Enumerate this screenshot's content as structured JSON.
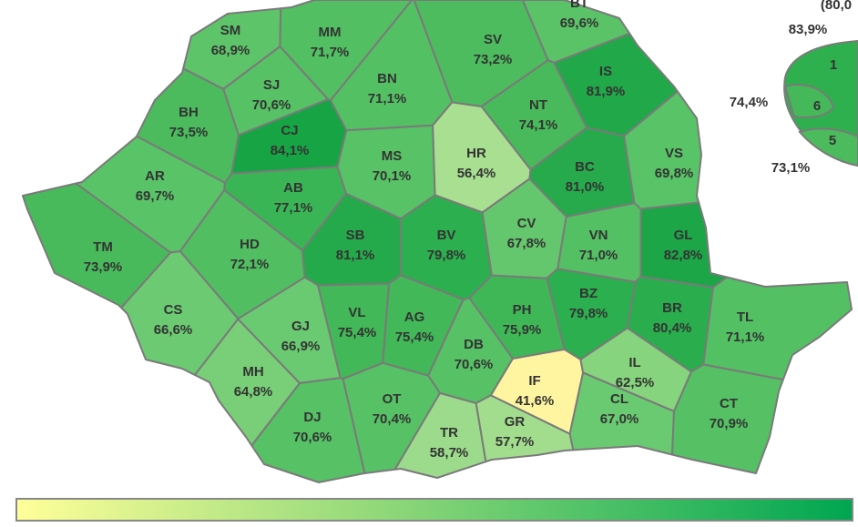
{
  "map": {
    "counties": [
      {
        "code": "SM",
        "value_label": "68,9%",
        "color": "#5ec469"
      },
      {
        "code": "MM",
        "value_label": "71,7%",
        "color": "#52bf62"
      },
      {
        "code": "BT",
        "value_label": "69,6%",
        "color": "#5ac367"
      },
      {
        "code": "SV",
        "value_label": "73,2%",
        "color": "#4cbc5e"
      },
      {
        "code": "BN",
        "value_label": "71,1%",
        "color": "#54c064"
      },
      {
        "code": "SJ",
        "value_label": "70,6%",
        "color": "#56c165"
      },
      {
        "code": "BH",
        "value_label": "73,5%",
        "color": "#4bbb5d"
      },
      {
        "code": "CJ",
        "value_label": "84,1%",
        "color": "#16a444"
      },
      {
        "code": "IS",
        "value_label": "81,9%",
        "color": "#21a849"
      },
      {
        "code": "NT",
        "value_label": "74,1%",
        "color": "#48ba5b"
      },
      {
        "code": "MS",
        "value_label": "70,1%",
        "color": "#58c266"
      },
      {
        "code": "HR",
        "value_label": "56,4%",
        "color": "#a8df91"
      },
      {
        "code": "BC",
        "value_label": "81,0%",
        "color": "#26aa4b"
      },
      {
        "code": "VS",
        "value_label": "69,8%",
        "color": "#59c367"
      },
      {
        "code": "AR",
        "value_label": "69,7%",
        "color": "#59c367"
      },
      {
        "code": "AB",
        "value_label": "77,1%",
        "color": "#3ab555"
      },
      {
        "code": "CV",
        "value_label": "67,8%",
        "color": "#65c76d"
      },
      {
        "code": "VN",
        "value_label": "71,0%",
        "color": "#54c064"
      },
      {
        "code": "GL",
        "value_label": "82,8%",
        "color": "#1ca647"
      },
      {
        "code": "TM",
        "value_label": "73,9%",
        "color": "#49ba5c"
      },
      {
        "code": "HD",
        "value_label": "72,1%",
        "color": "#50be61"
      },
      {
        "code": "SB",
        "value_label": "81,1%",
        "color": "#25aa4b"
      },
      {
        "code": "BV",
        "value_label": "79,8%",
        "color": "#2caf4e"
      },
      {
        "code": "BZ",
        "value_label": "79,8%",
        "color": "#2caf4e"
      },
      {
        "code": "BR",
        "value_label": "80,4%",
        "color": "#29ad4d"
      },
      {
        "code": "TL",
        "value_label": "71,1%",
        "color": "#54c064"
      },
      {
        "code": "CS",
        "value_label": "66,6%",
        "color": "#6cca72"
      },
      {
        "code": "GJ",
        "value_label": "66,9%",
        "color": "#6aca71"
      },
      {
        "code": "VL",
        "value_label": "75,4%",
        "color": "#42b858"
      },
      {
        "code": "AG",
        "value_label": "75,4%",
        "color": "#42b858"
      },
      {
        "code": "PH",
        "value_label": "75,9%",
        "color": "#40b757"
      },
      {
        "code": "DB",
        "value_label": "70,6%",
        "color": "#56c165"
      },
      {
        "code": "IF",
        "value_label": "41,6%",
        "color": "#fff4a0"
      },
      {
        "code": "IL",
        "value_label": "62,5%",
        "color": "#86d47d"
      },
      {
        "code": "MH",
        "value_label": "64,8%",
        "color": "#78cf77"
      },
      {
        "code": "OT",
        "value_label": "70,4%",
        "color": "#57c165"
      },
      {
        "code": "DJ",
        "value_label": "70,6%",
        "color": "#56c165"
      },
      {
        "code": "TR",
        "value_label": "58,7%",
        "color": "#9cdb8b"
      },
      {
        "code": "GR",
        "value_label": "57,7%",
        "color": "#a2dd8e"
      },
      {
        "code": "CL",
        "value_label": "67,0%",
        "color": "#6aca71"
      },
      {
        "code": "CT",
        "value_label": "70,9%",
        "color": "#55c064"
      }
    ],
    "inset": {
      "labels": [
        "(80,0",
        "83,9%",
        "1",
        "74,4%",
        "6",
        "5",
        "73,1%"
      ]
    }
  }
}
